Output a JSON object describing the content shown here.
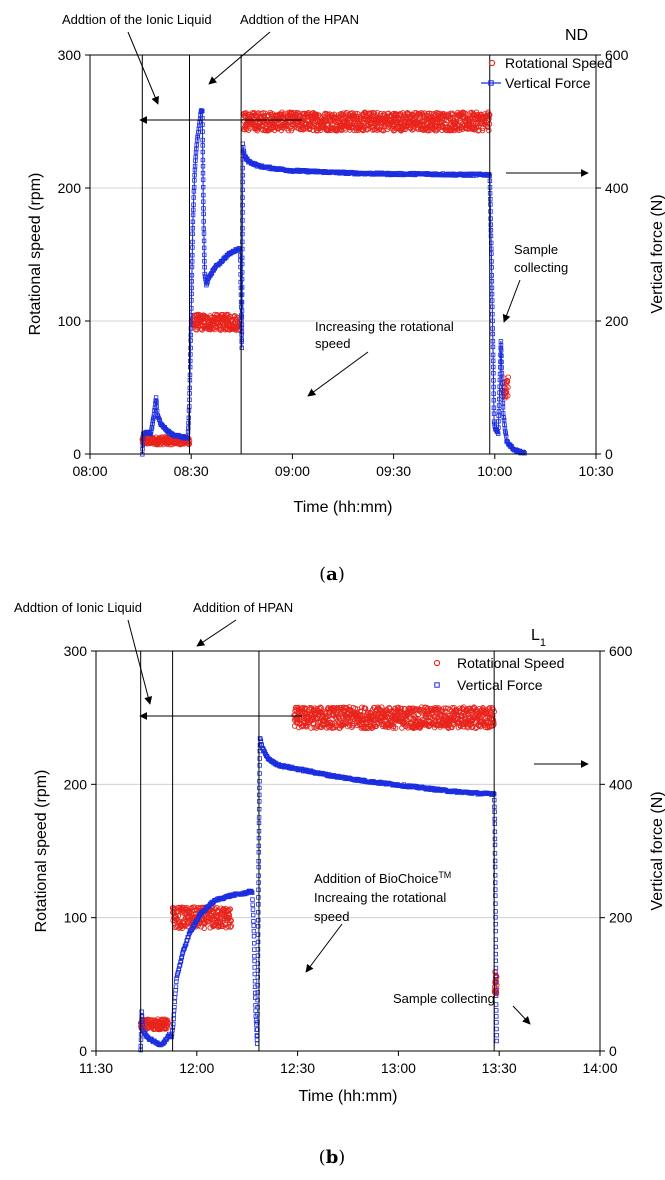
{
  "chart_data": [
    {
      "id": "a",
      "type": "scatter",
      "panel_label": "a",
      "tag": "ND",
      "tag_sub": "",
      "xlabel": "Time (hh:mm)",
      "ylabel": "Rotational speed (rpm)",
      "y2label": "Vertical force (N)",
      "xlim": [
        480,
        630
      ],
      "ylim": [
        0,
        300
      ],
      "y2lim": [
        0,
        600
      ],
      "x_ticks": [
        480,
        510,
        540,
        570,
        600,
        630
      ],
      "x_tick_labels": [
        "08:00",
        "08:30",
        "09:00",
        "09:30",
        "10:00",
        "10:30"
      ],
      "y_ticks": [
        0,
        100,
        200,
        300
      ],
      "y2_ticks": [
        0,
        200,
        400,
        600
      ],
      "grid": true,
      "legend_position": "top-right",
      "series": [
        {
          "name": "Rotational Speed",
          "axis": "left",
          "color": "#e8241c",
          "marker": "circle",
          "segments": [
            {
              "x0": 495.5,
              "x1": 509.5,
              "level": 10,
              "spread": 3
            },
            {
              "x0": 510.2,
              "x1": 524.5,
              "level": 99,
              "spread": 6
            },
            {
              "x0": 525.5,
              "x1": 598.5,
              "level": 250,
              "spread": 7
            },
            {
              "x0": 602.5,
              "x1": 604.0,
              "level": 50,
              "spread": 8
            }
          ]
        },
        {
          "name": "Vertical Force",
          "axis": "right",
          "color": "#1c2ee0",
          "marker": "square",
          "line": true,
          "points": [
            [
              495.5,
              0
            ],
            [
              495.8,
              30
            ],
            [
              497,
              32
            ],
            [
              498,
              30
            ],
            [
              499,
              60
            ],
            [
              499.6,
              84
            ],
            [
              500,
              60
            ],
            [
              501,
              45
            ],
            [
              502,
              40
            ],
            [
              503,
              34
            ],
            [
              505,
              28
            ],
            [
              507,
              26
            ],
            [
              509,
              24
            ],
            [
              509.5,
              80
            ],
            [
              510,
              210
            ],
            [
              510.5,
              350
            ],
            [
              511,
              420
            ],
            [
              511.5,
              460
            ],
            [
              512,
              480
            ],
            [
              512.5,
              500
            ],
            [
              513,
              518
            ],
            [
              513.3,
              515
            ],
            [
              513.6,
              380
            ],
            [
              514,
              270
            ],
            [
              514.5,
              255
            ],
            [
              515,
              262
            ],
            [
              516,
              272
            ],
            [
              517,
              280
            ],
            [
              518,
              285
            ],
            [
              519,
              290
            ],
            [
              520,
              295
            ],
            [
              521,
              300
            ],
            [
              522,
              303
            ],
            [
              523,
              306
            ],
            [
              524,
              308
            ],
            [
              524.5,
              310
            ],
            [
              524.8,
              230
            ],
            [
              525,
              160
            ],
            [
              525.3,
              465
            ],
            [
              525.8,
              448
            ],
            [
              527,
              440
            ],
            [
              530,
              433
            ],
            [
              535,
              429
            ],
            [
              540,
              426
            ],
            [
              550,
              424
            ],
            [
              560,
              422
            ],
            [
              570,
              421
            ],
            [
              580,
              421
            ],
            [
              590,
              420
            ],
            [
              598.5,
              420
            ],
            [
              599,
              300
            ],
            [
              599.5,
              150
            ],
            [
              599.8,
              50
            ],
            [
              600,
              40
            ],
            [
              600.5,
              35
            ],
            [
              601,
              30
            ],
            [
              601.5,
              110
            ],
            [
              601.8,
              170
            ],
            [
              602,
              140
            ],
            [
              602.5,
              60
            ],
            [
              603,
              40
            ],
            [
              603.5,
              20
            ],
            [
              604,
              16
            ],
            [
              605,
              10
            ],
            [
              606,
              6
            ],
            [
              607,
              4
            ],
            [
              608,
              2
            ],
            [
              609,
              1
            ]
          ]
        }
      ],
      "annotations": [
        {
          "id": "ionic-liquid",
          "text": [
            "Addtion of the Ionic Liquid"
          ]
        },
        {
          "id": "hpan",
          "text": [
            "Addtion of the HPAN"
          ]
        },
        {
          "id": "increase-speed",
          "text": [
            "Increasing the rotational",
            "speed"
          ]
        },
        {
          "id": "sample",
          "text": [
            "Sample",
            "collecting"
          ]
        }
      ],
      "event_times": [
        495.5,
        509.5,
        524.8,
        598.5
      ]
    },
    {
      "id": "b",
      "type": "scatter",
      "panel_label": "b",
      "tag": "L",
      "tag_sub": "1",
      "xlabel": "Time (hh:mm)",
      "ylabel": "Rotational speed (rpm)",
      "y2label": "Vertical force (N)",
      "xlim": [
        690,
        840
      ],
      "ylim": [
        0,
        300
      ],
      "y2lim": [
        0,
        600
      ],
      "x_ticks": [
        690,
        720,
        750,
        780,
        810,
        840
      ],
      "x_tick_labels": [
        "11:30",
        "12:00",
        "12:30",
        "13:00",
        "13:30",
        "14:00"
      ],
      "y_ticks": [
        0,
        100,
        200,
        300
      ],
      "y2_ticks": [
        0,
        200,
        400,
        600
      ],
      "grid": true,
      "legend_position": "top-right",
      "series": [
        {
          "name": "Rotational Speed",
          "axis": "left",
          "color": "#e8241c",
          "marker": "circle",
          "segments": [
            {
              "x0": 703.3,
              "x1": 711.5,
              "level": 20,
              "spread": 4
            },
            {
              "x0": 712.8,
              "x1": 730.3,
              "level": 100,
              "spread": 8
            },
            {
              "x0": 749.0,
              "x1": 808.5,
              "level": 250,
              "spread": 8
            },
            {
              "x0": 808.6,
              "x1": 809.3,
              "level": 50,
              "spread": 10
            }
          ]
        },
        {
          "name": "Vertical Force",
          "axis": "right",
          "color": "#1c2ee0",
          "marker": "square",
          "line": false,
          "points": [
            [
              703.3,
              0
            ],
            [
              703.6,
              60
            ],
            [
              704,
              30
            ],
            [
              705,
              22
            ],
            [
              706,
              18
            ],
            [
              707,
              15
            ],
            [
              708,
              12
            ],
            [
              709,
              10
            ],
            [
              710,
              12
            ],
            [
              711,
              18
            ],
            [
              711.8,
              24
            ],
            [
              712.5,
              20
            ],
            [
              713,
              40
            ],
            [
              713.5,
              80
            ],
            [
              714,
              110
            ],
            [
              715,
              130
            ],
            [
              716,
              150
            ],
            [
              717,
              165
            ],
            [
              718,
              178
            ],
            [
              719,
              188
            ],
            [
              720,
              196
            ],
            [
              721,
              204
            ],
            [
              722,
              210
            ],
            [
              723,
              215
            ],
            [
              724,
              220
            ],
            [
              725,
              224
            ],
            [
              726,
              227
            ],
            [
              728,
              230
            ],
            [
              730,
              233
            ],
            [
              732,
              235
            ],
            [
              734,
              236
            ],
            [
              735,
              238
            ],
            [
              736,
              240
            ],
            [
              736.5,
              236
            ],
            [
              737,
              180
            ],
            [
              737.5,
              60
            ],
            [
              738,
              10
            ],
            [
              738.5,
              330
            ],
            [
              738.8,
              470
            ],
            [
              739.5,
              455
            ],
            [
              741,
              440
            ],
            [
              743,
              432
            ],
            [
              745,
              428
            ],
            [
              750,
              423
            ],
            [
              755,
              418
            ],
            [
              760,
              413
            ],
            [
              765,
              409
            ],
            [
              770,
              405
            ],
            [
              775,
              402
            ],
            [
              780,
              399
            ],
            [
              785,
              396
            ],
            [
              790,
              393
            ],
            [
              795,
              390
            ],
            [
              800,
              388
            ],
            [
              805,
              386
            ],
            [
              808.5,
              386
            ],
            [
              808.7,
              340
            ],
            [
              808.9,
              200
            ],
            [
              809.1,
              60
            ],
            [
              809.3,
              5
            ]
          ]
        }
      ],
      "annotations": [
        {
          "id": "ionic-liquid",
          "text": [
            "Addtion of Ionic Liquid"
          ]
        },
        {
          "id": "hpan",
          "text": [
            "Addition of HPAN"
          ]
        },
        {
          "id": "biochoice",
          "text": [
            "Addition of BioChoice",
            "Increaing the rotational",
            "speed"
          ],
          "sup": "TM"
        },
        {
          "id": "sample",
          "text": [
            "Sample collecting"
          ]
        }
      ],
      "event_times": [
        703.3,
        712.8,
        738.5,
        808.5
      ]
    }
  ]
}
